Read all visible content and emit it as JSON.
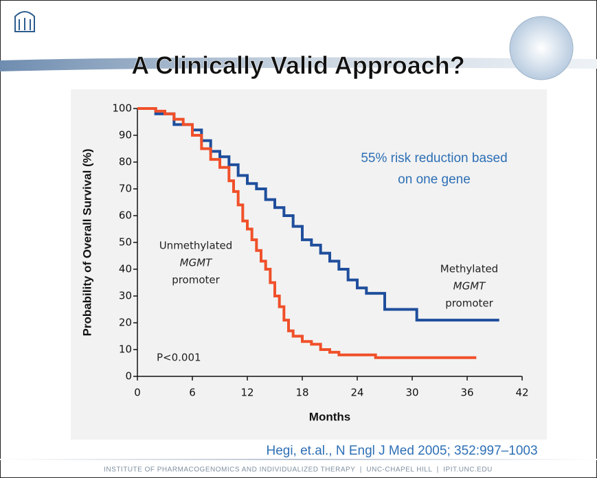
{
  "slide": {
    "title": "A Clinically Valid Approach?",
    "citation": "Hegi, et.al., N Engl J Med 2005; 352:997–1003",
    "footer": "INSTITUTE OF PHARMACOGENOMICS AND INDIVIDUALIZED THERAPY  |  UNC-CHAPEL HILL  |  IPIT.UNC.EDU"
  },
  "chart_data": {
    "type": "line",
    "step": true,
    "x_label": "Months",
    "y_label": "Probability of Overall Survival (%)",
    "xlim": [
      0,
      42
    ],
    "xticks": [
      0,
      6,
      12,
      18,
      24,
      30,
      36,
      42
    ],
    "ylim": [
      0,
      100
    ],
    "yticks": [
      0,
      10,
      20,
      30,
      40,
      50,
      60,
      70,
      80,
      90,
      100
    ],
    "annotation": [
      "55% risk reduction based",
      "on one gene"
    ],
    "p_value": "P<0.001",
    "series": [
      {
        "label_lines": [
          "Methylated",
          "MGMT",
          "promoter"
        ],
        "color": "#1f4e9c",
        "x": [
          0,
          2,
          4,
          6,
          7,
          8,
          9,
          10,
          11,
          12,
          13,
          14,
          15,
          16,
          17,
          18,
          19,
          20,
          21,
          22,
          23,
          24,
          25,
          27,
          30.5,
          39.5
        ],
        "values": [
          100,
          98,
          94,
          92,
          88,
          84,
          82,
          79,
          75,
          72,
          70,
          66,
          63,
          60,
          56,
          51,
          49,
          46,
          43,
          40,
          36,
          33,
          31,
          25,
          21,
          21
        ]
      },
      {
        "label_lines": [
          "Unmethylated",
          "MGMT",
          "promoter"
        ],
        "color": "#f0502a",
        "x": [
          0,
          2,
          3,
          4,
          5,
          6,
          7,
          8,
          9,
          10,
          10.5,
          11,
          11.5,
          12,
          12.5,
          13,
          13.5,
          14,
          14.5,
          15,
          15.5,
          16,
          16.5,
          17,
          18,
          19,
          20,
          21,
          22,
          24,
          26,
          37
        ],
        "values": [
          100,
          99,
          98,
          96,
          94,
          90,
          85,
          81,
          78,
          73,
          69,
          64,
          58,
          55,
          51,
          47,
          43,
          40,
          35,
          30,
          26,
          21,
          17,
          15,
          13,
          12,
          10,
          9,
          8,
          8,
          7,
          7
        ]
      }
    ]
  }
}
